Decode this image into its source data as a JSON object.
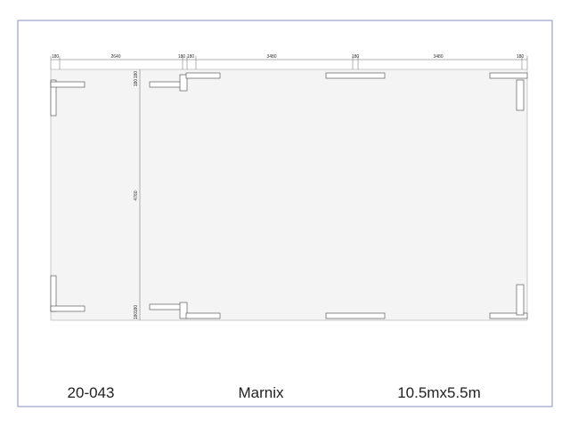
{
  "dimensions": {
    "top": [
      "180",
      "2640",
      "180",
      "180",
      "3480",
      "180",
      "3480",
      "180"
    ],
    "left": [
      "180",
      "180",
      "4760",
      "180",
      "180"
    ]
  },
  "footer": {
    "code": "20-043",
    "name": "Marnix",
    "size": "10.5mx5.5m"
  }
}
